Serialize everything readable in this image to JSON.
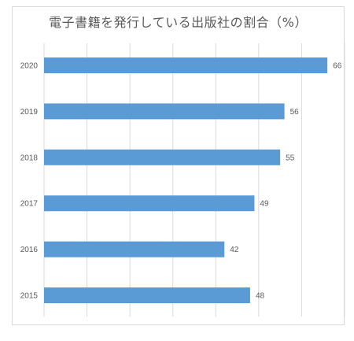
{
  "chart_data": {
    "type": "bar",
    "orientation": "horizontal",
    "title": "電子書籍を発行している出版社の割合（%）",
    "categories": [
      "2020",
      "2019",
      "2018",
      "2017",
      "2016",
      "2015"
    ],
    "values": [
      66,
      56,
      55,
      49,
      42,
      48
    ],
    "xlim": [
      0,
      70
    ],
    "grid": true,
    "data_labels": true,
    "bar_color": "#5b9bd5",
    "grid_color": "#d9d9d9"
  }
}
